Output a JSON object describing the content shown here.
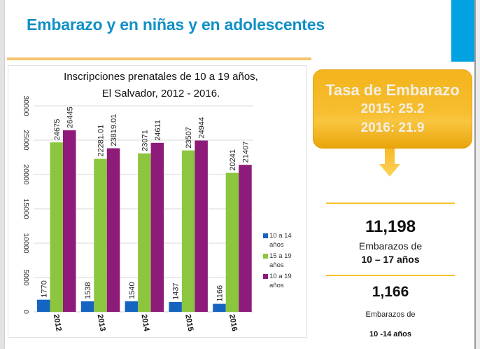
{
  "slide": {
    "title": "Embarazo y en niñas y en adolescentes",
    "accent_color": "#00a2e1",
    "rule_color": "#f6c56f"
  },
  "rate_box": {
    "title": "Tasa de Embarazo",
    "lines": [
      "2015: 25.2",
      "2016: 21.9"
    ],
    "icon": "arrow-down-icon"
  },
  "stats": [
    {
      "value": "11,198",
      "label_line1": "Embarazos de",
      "label_line2": "10 – 17 años"
    },
    {
      "value": "1,166",
      "label_line1": "Embarazos de",
      "label_line2": "10 -14 años"
    }
  ],
  "chart_data": {
    "type": "bar",
    "title": "Inscripciones prenatales de 10 a 19 años,\nEl Salvador, 2012 - 2016.",
    "xlabel": "",
    "ylabel": "",
    "categories": [
      "2012",
      "2013",
      "2014",
      "2015",
      "2016"
    ],
    "ylim": [
      0,
      30000
    ],
    "yticks": [
      0,
      5000,
      10000,
      15000,
      20000,
      25000,
      30000
    ],
    "grid": true,
    "legend_position": "right",
    "series": [
      {
        "name": "10 a 14 años",
        "color": "#1565c0",
        "values": [
          1770,
          1538,
          1540,
          1437,
          1166
        ],
        "labels": [
          "1770",
          "1538",
          "1540",
          "1437",
          "1166"
        ]
      },
      {
        "name": "15 a 19 años",
        "color": "#8cc63f",
        "values": [
          24675,
          22281.01,
          23071,
          23507,
          20241
        ],
        "labels": [
          "24675",
          "22281.01",
          "23071",
          "23507",
          "20241"
        ]
      },
      {
        "name": "10 a 19 años",
        "color": "#8e1b7a",
        "values": [
          26445,
          23819.01,
          24611,
          24944,
          21407
        ],
        "labels": [
          "26445",
          "23819.01",
          "24611",
          "24944",
          "21407"
        ]
      }
    ]
  }
}
